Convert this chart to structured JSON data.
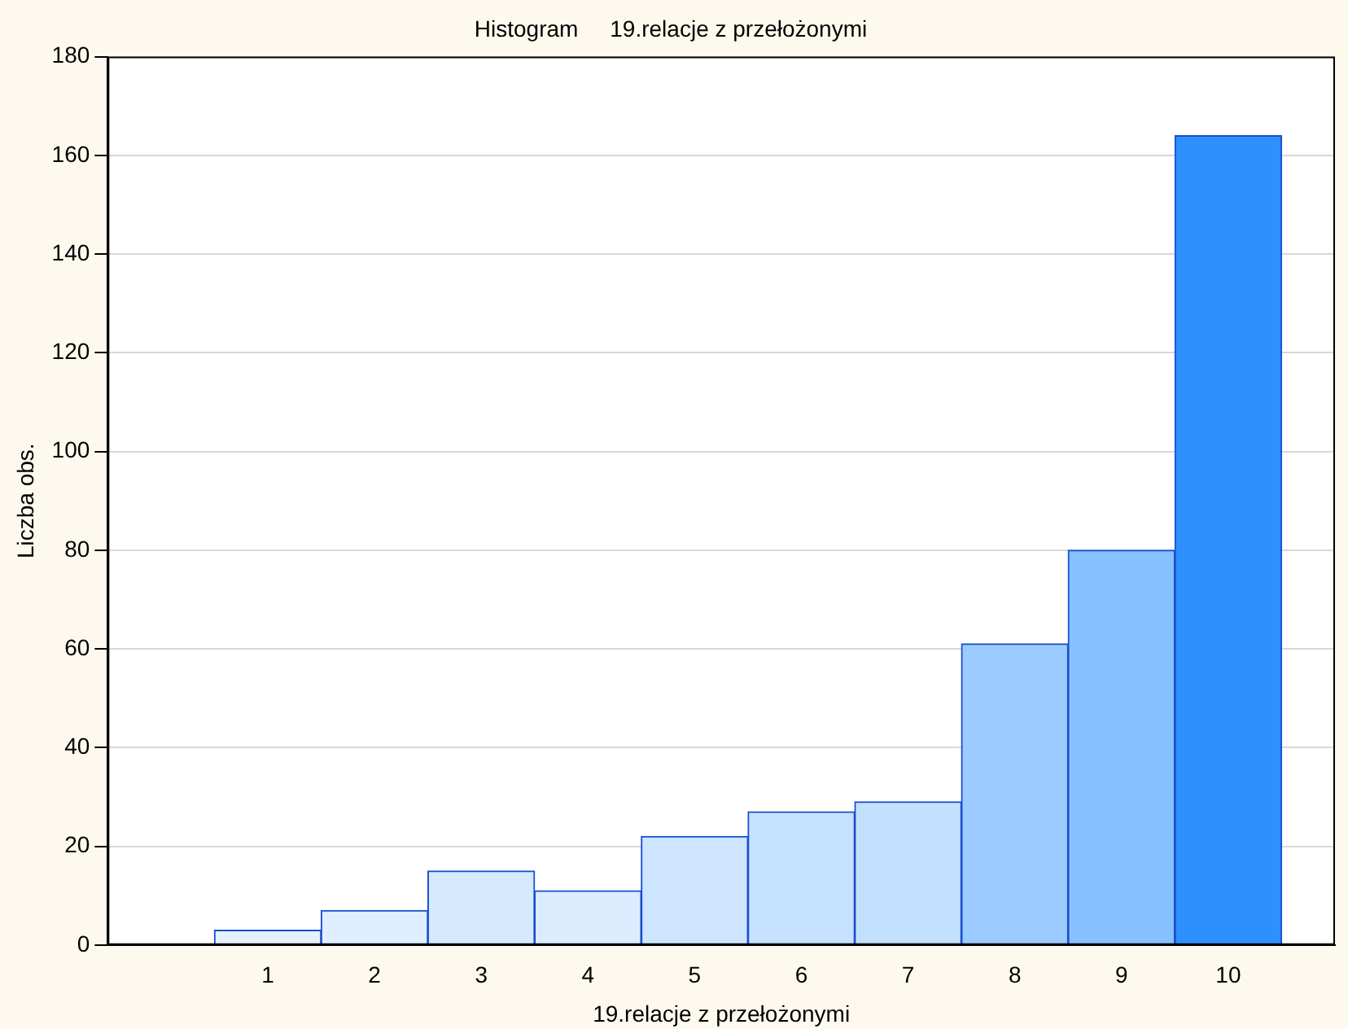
{
  "chart_data": {
    "type": "histogram",
    "title": "Histogram     19.relacje z przełożonymi",
    "xlabel": "19.relacje z przełożonymi",
    "ylabel": "Liczba obs.",
    "bins": [
      0.5,
      1.5,
      2.5,
      3.5,
      4.5,
      5.5,
      6.5,
      7.5,
      8.5,
      9.5,
      10.5
    ],
    "values": [
      3,
      7,
      15,
      11,
      22,
      27,
      29,
      61,
      80,
      164
    ],
    "colors": [
      "#e4f1ff",
      "#dfeeff",
      "#d6eaff",
      "#dbecff",
      "#cde5ff",
      "#c7e2ff",
      "#c4e0ff",
      "#9ccbff",
      "#88c1ff",
      "#2e90ff"
    ],
    "xlim": [
      -0.5,
      11
    ],
    "xticks": [
      1,
      2,
      3,
      4,
      5,
      6,
      7,
      8,
      9,
      10
    ],
    "ylim": [
      0,
      180
    ],
    "yticks": [
      0,
      20,
      40,
      60,
      80,
      100,
      120,
      140,
      160,
      180
    ],
    "grid": "y",
    "legend": false
  }
}
